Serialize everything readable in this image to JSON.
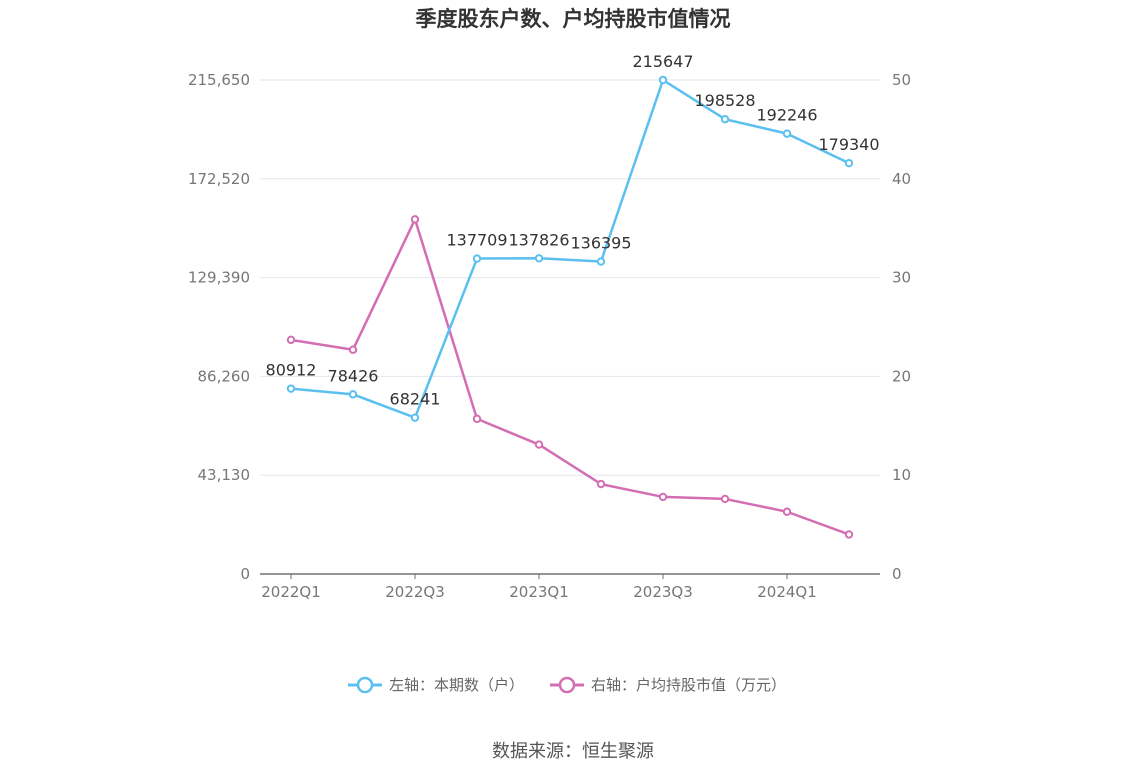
{
  "chart_data": {
    "type": "line",
    "title": "季度股东户数、户均持股市值情况",
    "categories": [
      "2022Q1",
      "2022Q2",
      "2022Q3",
      "2022Q4",
      "2023Q1",
      "2023Q2",
      "2023Q3",
      "2023Q4",
      "2024Q1",
      "2024Q2"
    ],
    "x_tick_labels": [
      "2022Q1",
      "2022Q3",
      "2023Q1",
      "2023Q3",
      "2024Q1"
    ],
    "left_axis": {
      "ticks": [
        "0",
        "43,130",
        "86,260",
        "129,390",
        "172,520",
        "215,650"
      ],
      "min": 0,
      "max": 215650
    },
    "right_axis": {
      "ticks": [
        "0",
        "10",
        "20",
        "30",
        "40",
        "50"
      ],
      "min": 0,
      "max": 50
    },
    "series": [
      {
        "name": "左轴：本期数（户）",
        "axis": "left",
        "color": "#5bc0f0",
        "values": [
          80912,
          78426,
          68241,
          137709,
          137826,
          136395,
          215647,
          198528,
          192246,
          179340
        ],
        "labels": [
          "80912",
          "78426",
          "68241",
          "137709",
          "137826",
          "136395",
          "215647",
          "198528",
          "192246",
          "179340"
        ]
      },
      {
        "name": "右轴：户均持股市值（万元）",
        "axis": "right",
        "color": "#d46eb3",
        "values": [
          23.7,
          22.7,
          35.9,
          15.7,
          13.1,
          9.1,
          7.8,
          7.6,
          6.3,
          4.0
        ]
      }
    ],
    "grid": true,
    "legend_position": "bottom"
  },
  "source": "数据来源：恒生聚源"
}
